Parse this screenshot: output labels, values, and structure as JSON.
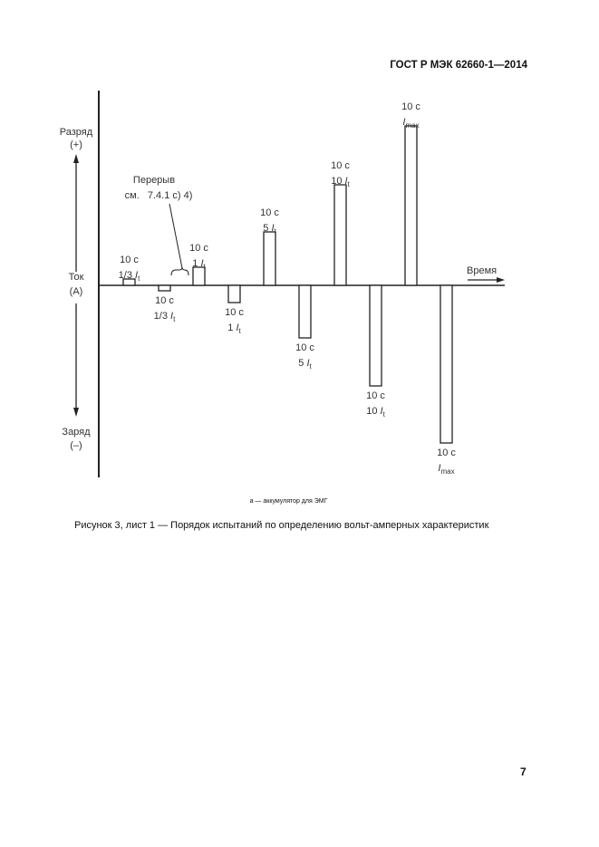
{
  "header": {
    "standard": "ГОСТ Р МЭК 62660-1—2014"
  },
  "diagram": {
    "y_axis_label": "Ток",
    "y_axis_unit": "(A)",
    "up_label": "Разряд",
    "up_sign": "(+)",
    "down_label": "Заряд",
    "down_sign": "(–)",
    "x_axis_label": "Время",
    "break_label": "Перерыв",
    "break_ref": "см.   7.4.1 с) 4)",
    "pulses": [
      {
        "duration": "10 с",
        "current": "1/3",
        "symbol": "I",
        "sub": "t",
        "direction": "discharge"
      },
      {
        "duration": "10 с",
        "current": "1/3",
        "symbol": "I",
        "sub": "t",
        "direction": "charge"
      },
      {
        "duration": "10 с",
        "current": "1",
        "symbol": "I",
        "sub": "t",
        "direction": "discharge"
      },
      {
        "duration": "10 с",
        "current": "1",
        "symbol": "I",
        "sub": "t",
        "direction": "charge"
      },
      {
        "duration": "10 с",
        "current": "5",
        "symbol": "I",
        "sub": "t",
        "direction": "discharge"
      },
      {
        "duration": "10 с",
        "current": "5",
        "symbol": "I",
        "sub": "t",
        "direction": "charge"
      },
      {
        "duration": "10 с",
        "current": "10",
        "symbol": "I",
        "sub": "t",
        "direction": "discharge"
      },
      {
        "duration": "10 с",
        "current": "10",
        "symbol": "I",
        "sub": "t",
        "direction": "charge"
      },
      {
        "duration": "10 с",
        "current": "",
        "symbol": "I",
        "sub": "max",
        "direction": "discharge"
      },
      {
        "duration": "10 с",
        "current": "",
        "symbol": "I",
        "sub": "max",
        "direction": "charge"
      }
    ]
  },
  "footnote": "a — аккумулятор для ЭМГ",
  "caption": "Рисунок 3, лист 1 — Порядок испытаний по определению вольт-амперных характеристик",
  "page_number": "7"
}
